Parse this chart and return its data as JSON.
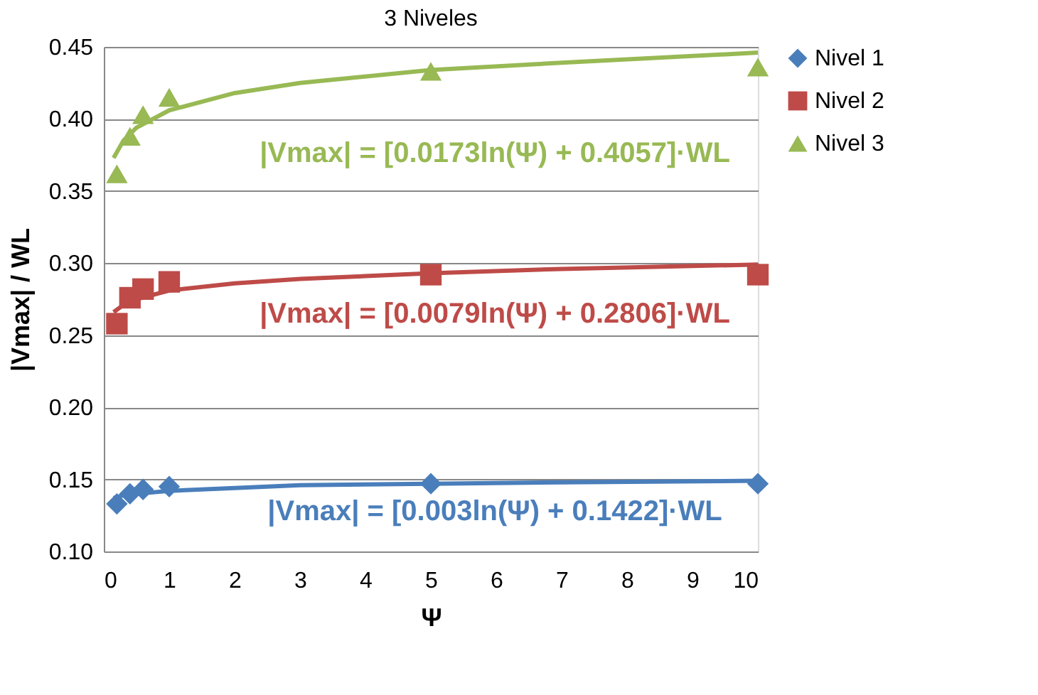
{
  "chart_data": {
    "type": "scatter",
    "title": "3 Niveles",
    "xlabel": "Ψ",
    "ylabel": "|Vmax| / WL",
    "xlim": [
      0,
      10
    ],
    "xticks": [
      0,
      1,
      2,
      3,
      4,
      5,
      6,
      7,
      8,
      9,
      10
    ],
    "ylim": [
      0.1,
      0.45
    ],
    "yticks": [
      {
        "value": 0.1,
        "label": "0.10"
      },
      0.15,
      {
        "value": 0.2,
        "label": "0.20"
      },
      0.25,
      {
        "value": 0.3,
        "label": "0.30"
      },
      0.35,
      {
        "value": 0.4,
        "label": "0.40"
      },
      0.45
    ],
    "grid": "y",
    "legend": "right",
    "series": [
      {
        "name": "Nivel 1",
        "marker": "diamond",
        "color": "#4a7ebb",
        "x": [
          0.2,
          0.4,
          0.6,
          1,
          5,
          10
        ],
        "values": [
          0.133,
          0.14,
          0.143,
          0.145,
          0.147,
          0.147
        ]
      },
      {
        "name": "Nivel 2",
        "marker": "square",
        "color": "#be4b48",
        "x": [
          0.2,
          0.4,
          0.6,
          1,
          5,
          10
        ],
        "values": [
          0.258,
          0.276,
          0.282,
          0.287,
          0.292,
          0.292
        ]
      },
      {
        "name": "Nivel 3",
        "marker": "triangle",
        "color": "#98b954",
        "x": [
          0.2,
          0.4,
          0.6,
          1,
          5,
          10
        ],
        "values": [
          0.362,
          0.388,
          0.403,
          0.415,
          0.433,
          0.436
        ]
      },
      {
        "type": "line",
        "color": "#4a7ebb",
        "x": [
          0.15,
          0.3,
          0.5,
          1,
          2,
          3,
          5,
          7,
          10
        ],
        "values": [
          0.137,
          0.139,
          0.14,
          0.142,
          0.144,
          0.146,
          0.147,
          0.148,
          0.149
        ]
      },
      {
        "type": "line",
        "color": "#be4b48",
        "x": [
          0.15,
          0.3,
          0.5,
          1,
          2,
          3,
          5,
          7,
          10
        ],
        "values": [
          0.266,
          0.271,
          0.275,
          0.281,
          0.286,
          0.289,
          0.293,
          0.296,
          0.299
        ]
      },
      {
        "type": "line",
        "color": "#98b954",
        "x": [
          0.15,
          0.3,
          0.5,
          1,
          2,
          3,
          5,
          7,
          10
        ],
        "values": [
          0.373,
          0.385,
          0.394,
          0.406,
          0.418,
          0.425,
          0.434,
          0.439,
          0.446
        ]
      }
    ],
    "annotations": [
      "|Vmax| = [0.003ln(Ψ) + 0.1422]·WL",
      "|Vmax| = [0.0079ln(Ψ) + 0.2806]·WL",
      "|Vmax| = [0.0173ln(Ψ) + 0.4057]·WL"
    ]
  }
}
